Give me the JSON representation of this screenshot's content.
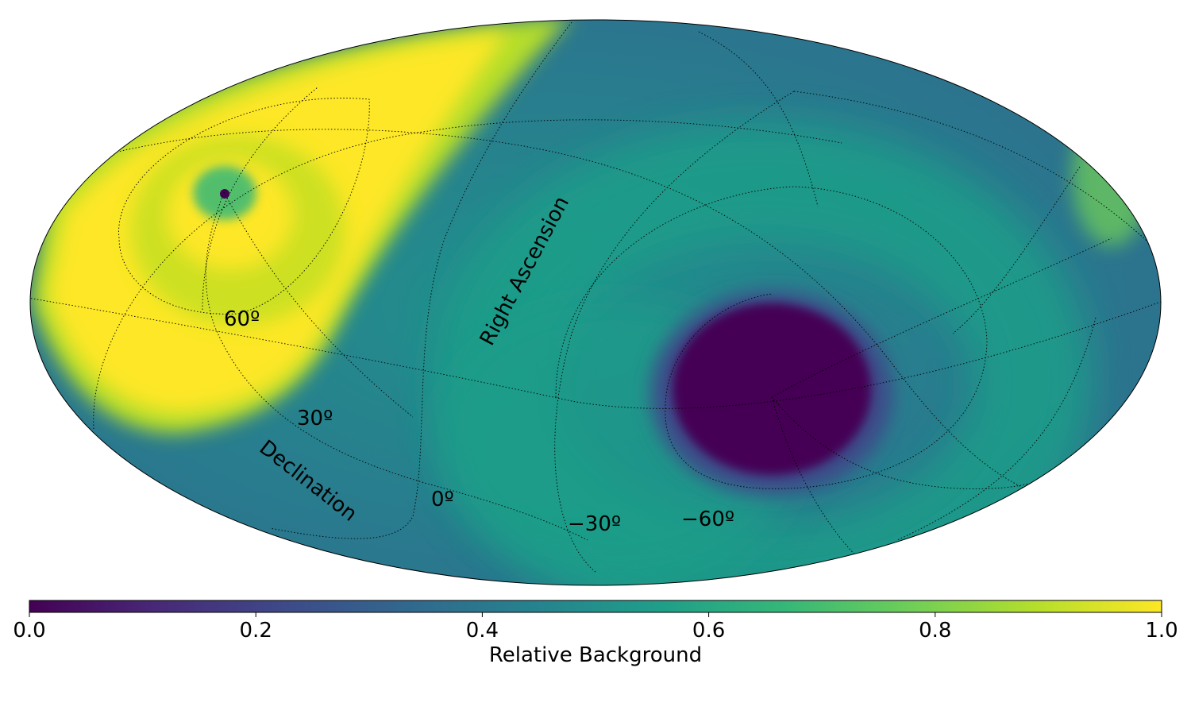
{
  "map": {
    "projection": "mollweide",
    "colormap": "viridis",
    "background_field": [
      {
        "kind": "bright-band",
        "level": 1.0
      },
      {
        "kind": "dark-blob",
        "level": 0.0
      },
      {
        "kind": "dark-pinpoint",
        "level": 0.0
      }
    ],
    "axis_labels": {
      "ra": "Right Ascension",
      "dec": "Declination"
    },
    "declination_labels": [
      "60º",
      "30º",
      "0º",
      "−30º",
      "−60º"
    ]
  },
  "colorbar": {
    "label": "Relative Background",
    "range": [
      0.0,
      1.0
    ],
    "ticks": [
      "0.0",
      "0.2",
      "0.4",
      "0.6",
      "0.8",
      "1.0"
    ],
    "stops": [
      "#440154",
      "#482878",
      "#3e4989",
      "#31688e",
      "#26828e",
      "#1f9e89",
      "#35b779",
      "#6ece58",
      "#b5de2b",
      "#fde725"
    ]
  }
}
